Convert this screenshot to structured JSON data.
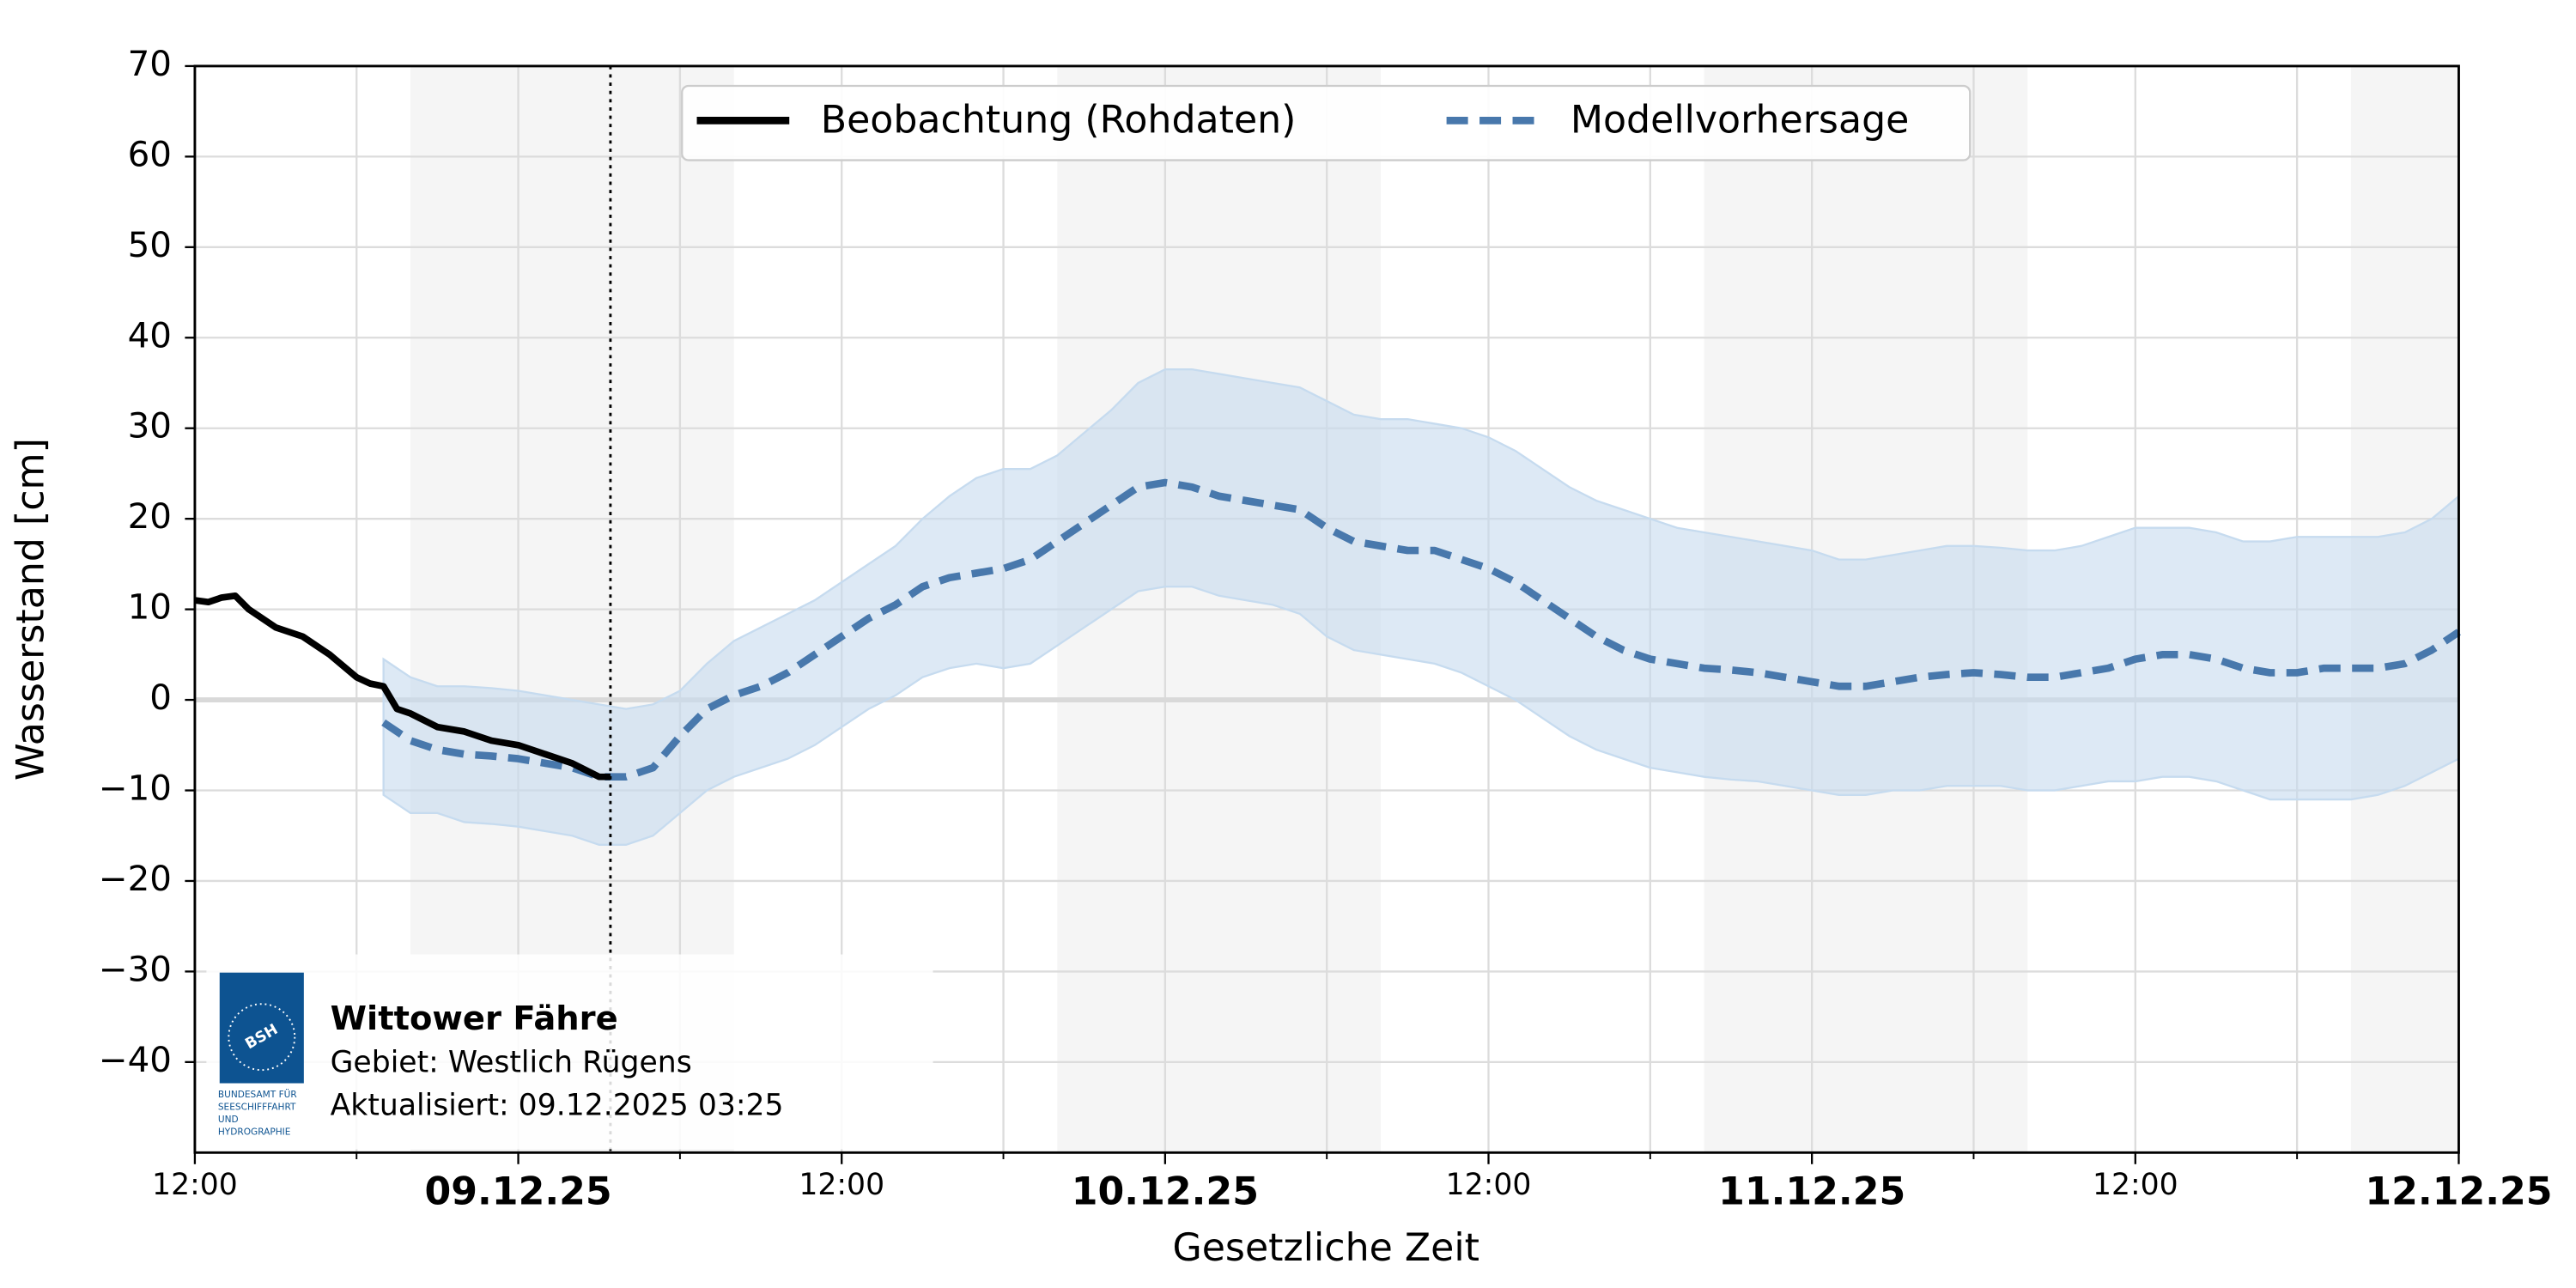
{
  "chart_data": {
    "type": "line",
    "xlabel": "Gesetzliche Zeit",
    "ylabel": "Wasserstand [cm]",
    "xlim": [
      0,
      84
    ],
    "ylim": [
      -50,
      70
    ],
    "yticks": [
      {
        "value": -40,
        "label": "−40"
      },
      {
        "value": -30,
        "label": "−30"
      },
      {
        "value": -20,
        "label": "−20"
      },
      {
        "value": -10,
        "label": "−10"
      },
      0,
      10,
      20,
      30,
      40,
      50,
      60,
      70
    ],
    "xticks": [
      {
        "value": 0,
        "label": "12:00"
      },
      {
        "value": 12,
        "label": "09.12.25"
      },
      {
        "value": 24,
        "label": "12:00"
      },
      {
        "value": 36,
        "label": "10.12.25"
      },
      {
        "value": 48,
        "label": "12:00"
      },
      {
        "value": 60,
        "label": "11.12.25"
      },
      {
        "value": 72,
        "label": "12:00"
      },
      {
        "value": 84,
        "label": "12.12.25"
      }
    ],
    "xminor_ticks": [
      6,
      18,
      30,
      42,
      54,
      66,
      78
    ],
    "grid": true,
    "zero_line": true,
    "shaded_spans": [
      [
        8,
        20
      ],
      [
        32,
        44
      ],
      [
        56,
        68
      ],
      [
        80,
        84
      ]
    ],
    "now_x": 15.42,
    "legend": "upper center",
    "series": [
      {
        "name": "Beobachtung (Rohdaten)",
        "color": "#000000",
        "x": [
          0,
          0.5,
          1,
          1.5,
          2,
          3,
          4,
          5,
          6,
          6.5,
          7,
          7.5,
          8,
          9,
          10,
          11,
          12,
          13,
          14,
          15,
          15.42
        ],
        "values": [
          11,
          10.8,
          11.3,
          11.5,
          10,
          8,
          7,
          5,
          2.5,
          1.8,
          1.5,
          -1,
          -1.5,
          -3,
          -3.5,
          -4.5,
          -5,
          -6,
          -7,
          -8.5,
          -8.5
        ]
      },
      {
        "name": "Modellvorhersage",
        "color": "#4878ac",
        "band_color": "#c6dbef",
        "x": [
          7,
          8,
          9,
          10,
          11,
          12,
          13,
          14,
          15,
          16,
          17,
          18,
          19,
          20,
          21,
          22,
          23,
          24,
          25,
          26,
          27,
          28,
          29,
          30,
          31,
          32,
          33,
          34,
          35,
          36,
          37,
          38,
          39,
          40,
          41,
          42,
          43,
          44,
          45,
          46,
          47,
          48,
          49,
          50,
          51,
          52,
          53,
          54,
          55,
          56,
          57,
          58,
          59,
          60,
          61,
          62,
          63,
          64,
          65,
          66,
          67,
          68,
          69,
          70,
          71,
          72,
          73,
          74,
          75,
          76,
          77,
          78,
          79,
          80,
          81,
          82,
          83,
          84
        ],
        "values": [
          -2.5,
          -4.5,
          -5.5,
          -6,
          -6.2,
          -6.5,
          -7,
          -7.5,
          -8.5,
          -8.5,
          -7.5,
          -4,
          -1,
          0.5,
          1.5,
          3,
          5,
          7,
          9,
          10.5,
          12.5,
          13.5,
          14,
          14.5,
          15.5,
          17.5,
          19.5,
          21.5,
          23.5,
          24,
          23.5,
          22.5,
          22,
          21.5,
          21,
          19,
          17.5,
          17,
          16.5,
          16.5,
          15.5,
          14.5,
          13,
          11,
          9,
          7,
          5.5,
          4.5,
          4,
          3.5,
          3.3,
          3,
          2.5,
          2,
          1.5,
          1.5,
          2,
          2.5,
          2.8,
          3,
          2.8,
          2.5,
          2.5,
          3,
          3.5,
          4.5,
          5,
          5,
          4.5,
          3.5,
          3,
          3,
          3.5,
          3.5,
          3.5,
          4,
          5.5,
          7.5
        ],
        "upper": [
          4.5,
          2.5,
          1.5,
          1.5,
          1.3,
          1,
          0.5,
          0,
          -0.5,
          -1,
          -0.5,
          1,
          4,
          6.5,
          8,
          9.5,
          11,
          13,
          15,
          17,
          20,
          22.5,
          24.5,
          25.5,
          25.5,
          27,
          29.5,
          32,
          35,
          36.5,
          36.5,
          36,
          35.5,
          35,
          34.5,
          33,
          31.5,
          31,
          31,
          30.5,
          30,
          29,
          27.5,
          25.5,
          23.5,
          22,
          21,
          20,
          19,
          18.5,
          18,
          17.5,
          17,
          16.5,
          15.5,
          15.5,
          16,
          16.5,
          17,
          17,
          16.8,
          16.5,
          16.5,
          17,
          18,
          19,
          19,
          19,
          18.5,
          17.5,
          17.5,
          18,
          18,
          18,
          18,
          18.5,
          20,
          22.5
        ],
        "lower": [
          -10.5,
          -12.5,
          -12.5,
          -13.5,
          -13.7,
          -14,
          -14.5,
          -15,
          -16,
          -16,
          -15,
          -12.5,
          -10,
          -8.5,
          -7.5,
          -6.5,
          -5,
          -3,
          -1,
          0.5,
          2.5,
          3.5,
          4,
          3.5,
          4,
          6,
          8,
          10,
          12,
          12.5,
          12.5,
          11.5,
          11,
          10.5,
          9.5,
          7,
          5.5,
          5,
          4.5,
          4,
          3,
          1.5,
          0,
          -2,
          -4,
          -5.5,
          -6.5,
          -7.5,
          -8,
          -8.5,
          -8.8,
          -9,
          -9.5,
          -10,
          -10.5,
          -10.5,
          -10,
          -10,
          -9.5,
          -9.5,
          -9.5,
          -10,
          -10,
          -9.5,
          -9,
          -9,
          -8.5,
          -8.5,
          -9,
          -10,
          -11,
          -11,
          -11,
          -11,
          -10.5,
          -9.5,
          -8,
          -6.5
        ]
      }
    ],
    "info_box": {
      "title": "Wittower Fähre",
      "lines": [
        "Gebiet: Westlich Rügens",
        "Aktualisiert: 09.12.2025 03:25"
      ],
      "logo_label": "BSH",
      "logo_caption": [
        "BUNDESAMT FÜR",
        "SEESCHIFFFAHRT",
        "UND",
        "HYDROGRAPHIE"
      ]
    }
  }
}
